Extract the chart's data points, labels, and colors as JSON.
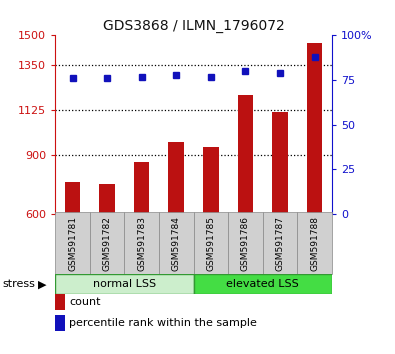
{
  "title": "GDS3868 / ILMN_1796072",
  "samples": [
    "GSM591781",
    "GSM591782",
    "GSM591783",
    "GSM591784",
    "GSM591785",
    "GSM591786",
    "GSM591787",
    "GSM591788"
  ],
  "counts": [
    760,
    750,
    865,
    965,
    940,
    1200,
    1115,
    1460
  ],
  "percentiles": [
    76,
    76,
    77,
    78,
    77,
    80,
    79,
    88
  ],
  "ylim_left": [
    600,
    1500
  ],
  "yticks_left": [
    600,
    900,
    1125,
    1350,
    1500
  ],
  "ylim_right": [
    0,
    100
  ],
  "yticks_right": [
    0,
    25,
    50,
    75,
    100
  ],
  "ytick_right_labels": [
    "0",
    "25",
    "50",
    "75",
    "100%"
  ],
  "bar_color": "#bb1111",
  "dot_color": "#1111bb",
  "group1_label": "normal LSS",
  "group2_label": "elevated LSS",
  "group1_indices": [
    0,
    1,
    2,
    3
  ],
  "group2_indices": [
    4,
    5,
    6,
    7
  ],
  "group1_bg": "#cceecc",
  "group2_bg": "#44dd44",
  "sample_bg": "#d0d0d0",
  "stress_label": "stress",
  "legend_count_label": "count",
  "legend_pct_label": "percentile rank within the sample",
  "title_color": "#111111",
  "left_tick_color": "#cc1111",
  "right_tick_color": "#1111cc",
  "dotted_grid_color": "#000000",
  "bar_width": 0.45,
  "dot_size": 5
}
